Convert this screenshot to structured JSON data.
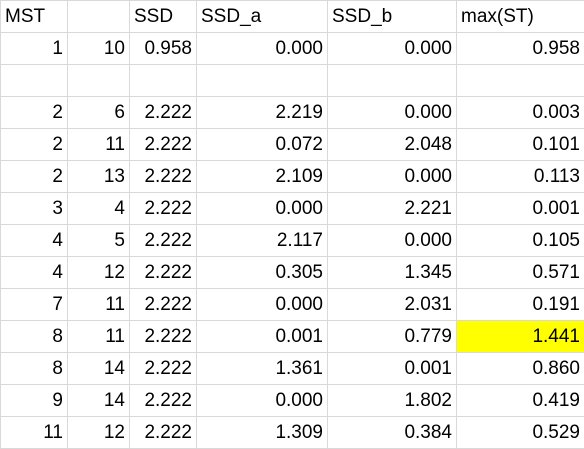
{
  "headers": [
    "MST",
    "",
    "SSD",
    "SSD_a",
    "SSD_b",
    "max(ST)"
  ],
  "rows": [
    [
      "1",
      "10",
      "0.958",
      "0.000",
      "0.000",
      "0.958"
    ],
    [
      "",
      "",
      "",
      "",
      "",
      ""
    ],
    [
      "2",
      "6",
      "2.222",
      "2.219",
      "0.000",
      "0.003"
    ],
    [
      "2",
      "11",
      "2.222",
      "0.072",
      "2.048",
      "0.101"
    ],
    [
      "2",
      "13",
      "2.222",
      "2.109",
      "0.000",
      "0.113"
    ],
    [
      "3",
      "4",
      "2.222",
      "0.000",
      "2.221",
      "0.001"
    ],
    [
      "4",
      "5",
      "2.222",
      "2.117",
      "0.000",
      "0.105"
    ],
    [
      "4",
      "12",
      "2.222",
      "0.305",
      "1.345",
      "0.571"
    ],
    [
      "7",
      "11",
      "2.222",
      "0.000",
      "2.031",
      "0.191"
    ],
    [
      "8",
      "11",
      "2.222",
      "0.001",
      "0.779",
      "1.441"
    ],
    [
      "8",
      "14",
      "2.222",
      "1.361",
      "0.001",
      "0.860"
    ],
    [
      "9",
      "14",
      "2.222",
      "0.000",
      "1.802",
      "0.419"
    ],
    [
      "11",
      "12",
      "2.222",
      "1.309",
      "0.384",
      "0.529"
    ]
  ],
  "highlight": {
    "color": "#ffff00",
    "row_index": 9,
    "col_index": 5
  },
  "colors": {
    "gridline": "#d9d9d9",
    "text": "#000000",
    "background": "#ffffff"
  }
}
